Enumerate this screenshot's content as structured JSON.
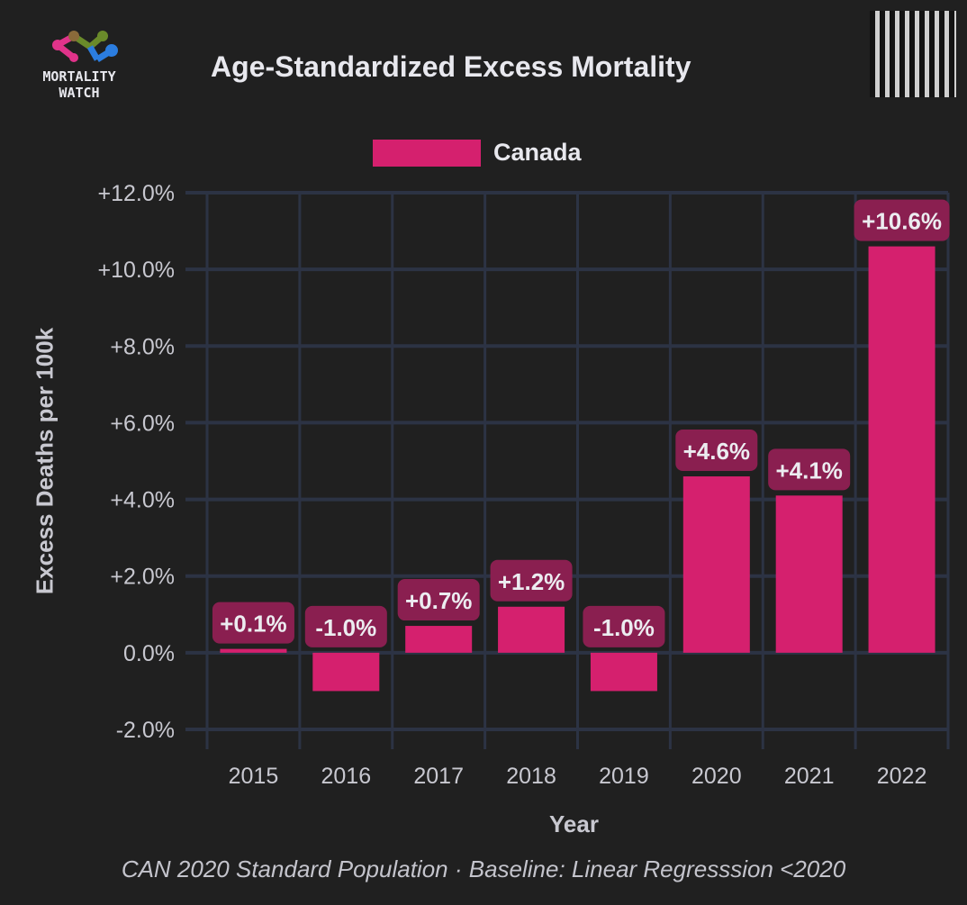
{
  "header": {
    "title": "Age-Standardized Excess Mortality",
    "logo_text": [
      "MORTALITY",
      "WATCH"
    ]
  },
  "footer": "CAN 2020 Standard Population · Baseline: Linear Regresssion <2020",
  "chart_data": {
    "type": "bar",
    "title": "Age-Standardized Excess Mortality",
    "xlabel": "Year",
    "ylabel": "Excess Deaths per 100k",
    "ylim": [
      -2,
      12
    ],
    "yticks": [
      -2,
      0,
      2,
      4,
      6,
      8,
      10,
      12
    ],
    "ytick_labels": [
      "-2.0%",
      "0.0%",
      "+2.0%",
      "+4.0%",
      "+6.0%",
      "+8.0%",
      "+10.0%",
      "+12.0%"
    ],
    "categories": [
      "2015",
      "2016",
      "2017",
      "2018",
      "2019",
      "2020",
      "2021",
      "2022"
    ],
    "series": [
      {
        "name": "Canada",
        "color": "#d5206e",
        "values": [
          0.1,
          -1.0,
          0.7,
          1.2,
          -1.0,
          4.6,
          4.1,
          10.6
        ]
      }
    ],
    "data_labels": [
      "+0.1%",
      "-1.0%",
      "+0.7%",
      "+1.2%",
      "-1.0%",
      "+4.6%",
      "+4.1%",
      "+10.6%"
    ],
    "legend": "top-center",
    "grid": true
  }
}
